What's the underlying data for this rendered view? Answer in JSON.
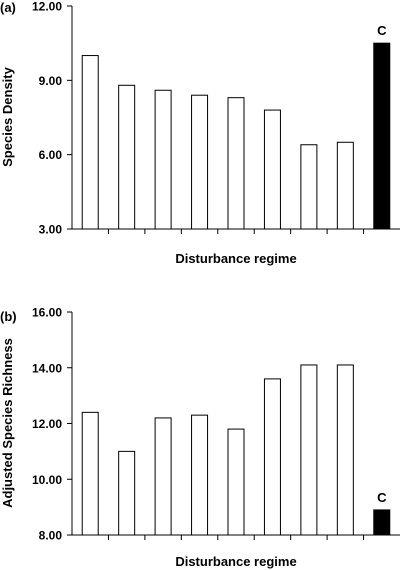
{
  "chart_data": [
    {
      "panel_label": "(a)",
      "type": "bar",
      "ylabel": "Species Density",
      "xlabel": "Disturbance regime",
      "ylim": [
        3.0,
        12.0
      ],
      "yticks": [
        "3.00",
        "6.00",
        "9.00",
        "12.00"
      ],
      "ytick_values": [
        3,
        6,
        9,
        12
      ],
      "grid": false,
      "values": [
        10.0,
        8.8,
        8.6,
        8.4,
        8.3,
        7.8,
        6.4,
        6.5,
        10.5
      ],
      "fills": [
        "white",
        "white",
        "white",
        "white",
        "white",
        "white",
        "white",
        "white",
        "black"
      ],
      "annotation": {
        "text": "C",
        "bar_index": 8
      }
    },
    {
      "panel_label": "(b)",
      "type": "bar",
      "ylabel": "Adjusted Species Richness",
      "xlabel": "Disturbance regime",
      "ylim": [
        8.0,
        16.0
      ],
      "yticks": [
        "8.00",
        "10.00",
        "12.00",
        "14.00",
        "16.00"
      ],
      "ytick_values": [
        8,
        10,
        12,
        14,
        16
      ],
      "grid": false,
      "values": [
        12.4,
        11.0,
        12.2,
        12.3,
        11.8,
        13.6,
        14.1,
        14.1,
        8.9
      ],
      "fills": [
        "white",
        "white",
        "white",
        "white",
        "white",
        "white",
        "white",
        "white",
        "black"
      ],
      "annotation": {
        "text": "C",
        "bar_index": 8
      }
    }
  ]
}
